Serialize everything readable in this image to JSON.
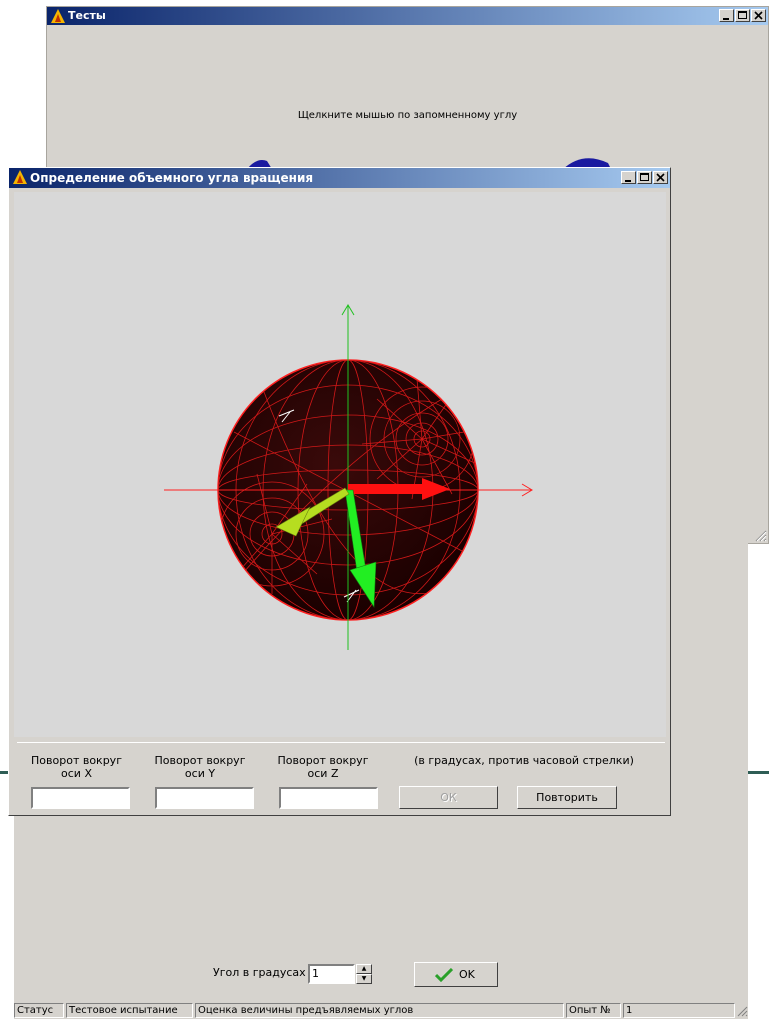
{
  "tests_window": {
    "title": "Тесты",
    "prompt": "Щелкните мышью по запомненному углу"
  },
  "dialog": {
    "title": "Определение объемного угла вращения",
    "axes": [
      {
        "label_line1": "Поворот вокруг",
        "label_line2": "оси X",
        "value": ""
      },
      {
        "label_line1": "Поворот вокруг",
        "label_line2": "оси Y",
        "value": ""
      },
      {
        "label_line1": "Поворот вокруг",
        "label_line2": "оси Z",
        "value": ""
      }
    ],
    "hint": "(в градусах, против часовой стрелки)",
    "ok_label": "ОК",
    "ok_enabled": false,
    "repeat_label": "Повторить"
  },
  "angle": {
    "label": "Угол в градусах",
    "value": "1",
    "ok_label": "OK"
  },
  "status": {
    "label": "Статус",
    "mode": "Тестовое испытание",
    "task": "Оценка величины предъявляемых углов",
    "trial_label": "Опыт №",
    "trial_number": "1"
  },
  "colors": {
    "title_start": "#0a246a",
    "title_end": "#a6caf0",
    "window_face": "#d6d3ce",
    "sphere_lines": "#ff2020",
    "x_axis": "#ff2020",
    "y_axis": "#20c020",
    "arrow_x": "#ff1010",
    "arrow_green": "#22ee22",
    "arrow_yellow": "#c8e020",
    "ok_check": "#2aa02a"
  }
}
